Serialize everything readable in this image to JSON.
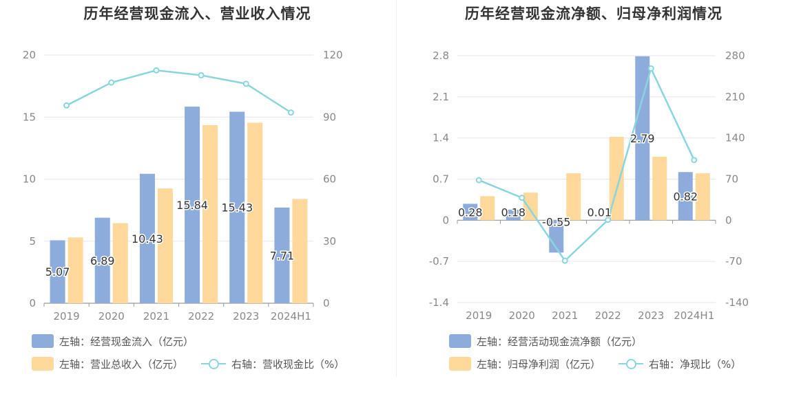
{
  "colors": {
    "bar_primary": "#8dacdb",
    "bar_secondary": "#fed99b",
    "line": "#88d6dd",
    "axis": "#888888",
    "grid": "#e6e6ee",
    "label": "#333333"
  },
  "left_chart": {
    "title": "历年经营现金流入、营业收入情况",
    "legend": {
      "bar1": "左轴：经营现金流入（亿元）",
      "bar2": "左轴：营业总收入（亿元）",
      "line": "右轴：营收现金比（%）"
    }
  },
  "right_chart": {
    "title": "历年经营现金流净额、归母净利润情况",
    "legend": {
      "bar1": "左轴：经营活动现金流净额（亿元）",
      "bar2": "左轴：归母净利润（亿元）",
      "line": "右轴：净现比（%）"
    }
  },
  "chart_data": [
    {
      "type": "bar",
      "title": "历年经营现金流入、营业收入情况",
      "categories": [
        "2019",
        "2020",
        "2021",
        "2022",
        "2023",
        "2024H1"
      ],
      "left_axis": {
        "range": [
          0,
          20
        ],
        "ticks": [
          "0",
          "5",
          "10",
          "15",
          "20"
        ],
        "tick_values": [
          0,
          5,
          10,
          15,
          20
        ]
      },
      "right_axis": {
        "range": [
          0,
          120
        ],
        "ticks": [
          "0",
          "30",
          "60",
          "90",
          "120"
        ],
        "tick_values": [
          0,
          30,
          60,
          90,
          120
        ]
      },
      "series": [
        {
          "name": "左轴：经营现金流入（亿元）",
          "kind": "bar",
          "axis": "left",
          "values": [
            5.07,
            6.89,
            10.43,
            15.84,
            15.43,
            7.71
          ],
          "labels": [
            "5.07",
            "6.89",
            "10.43",
            "15.84",
            "15.43",
            "7.71"
          ]
        },
        {
          "name": "左轴：营业总收入（亿元）",
          "kind": "bar",
          "axis": "left",
          "values": [
            5.3,
            6.45,
            9.25,
            14.35,
            14.55,
            8.4
          ]
        },
        {
          "name": "右轴：营收现金比（%）",
          "kind": "line",
          "axis": "right",
          "values": [
            95.6,
            106.7,
            112.6,
            110.2,
            106.1,
            92.2
          ]
        }
      ]
    },
    {
      "type": "bar",
      "title": "历年经营现金流净额、归母净利润情况",
      "categories": [
        "2019",
        "2020",
        "2021",
        "2022",
        "2023",
        "2024H1"
      ],
      "left_axis": {
        "range": [
          -1.4,
          2.8
        ],
        "ticks": [
          "-1.4",
          "-0.7",
          "0",
          "0.7",
          "1.4",
          "2.1",
          "2.8"
        ],
        "tick_values": [
          -1.4,
          -0.7,
          0,
          0.7,
          1.4,
          2.1,
          2.8
        ]
      },
      "right_axis": {
        "range": [
          -140,
          280
        ],
        "ticks": [
          "-140",
          "-70",
          "0",
          "70",
          "140",
          "210",
          "280"
        ],
        "tick_values": [
          -140,
          -70,
          0,
          70,
          140,
          210,
          280
        ]
      },
      "series": [
        {
          "name": "左轴：经营活动现金流净额（亿元）",
          "kind": "bar",
          "axis": "left",
          "values": [
            0.28,
            0.18,
            -0.55,
            0.01,
            2.79,
            0.82
          ],
          "labels": [
            "0.28",
            "0.18",
            "-0.55",
            "0.01",
            "2.79",
            "0.82"
          ]
        },
        {
          "name": "左轴：归母净利润（亿元）",
          "kind": "bar",
          "axis": "left",
          "values": [
            0.41,
            0.47,
            0.8,
            1.42,
            1.08,
            0.8
          ]
        },
        {
          "name": "右轴：净现比（%）",
          "kind": "line",
          "axis": "right",
          "values": [
            68.3,
            38.3,
            -68.8,
            0.7,
            258.3,
            102.5
          ]
        }
      ]
    }
  ]
}
